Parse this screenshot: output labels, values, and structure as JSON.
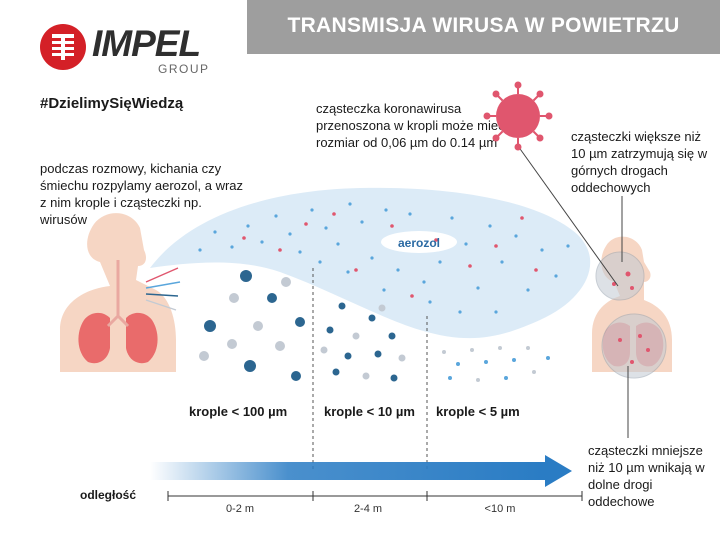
{
  "logo": {
    "word": "IMPEL",
    "sub": "GROUP"
  },
  "header": {
    "title": "TRANSMISJA WIRUSA W POWIETRZU"
  },
  "hashtag": "#DzielimySięWiedzą",
  "texts": {
    "left": "podczas rozmowy, kichania czy śmiechu rozpylamy aerozol, a wraz z nim krople i cząsteczki np. wirusów",
    "middle": "cząsteczka koronawirusa przenoszona w kropli może mieć rozmiar od 0,06 µm do 0.14 µm",
    "right_top": "cząsteczki większe niż 10 µm zatrzymują się w górnych drogach oddechowych",
    "right_bottom": "cząsteczki mniejsze niż 10 µm wnikają w dolne drogi oddechowe"
  },
  "aerosol_label": "aerozol",
  "categories": [
    "krople < 100 µm",
    "krople < 10 µm",
    "krople < 5 µm"
  ],
  "distance": {
    "label": "odległość",
    "ranges": [
      "0-2 m",
      "2-4 m",
      "<10 m"
    ]
  },
  "colors": {
    "banner": "#9e9e9e",
    "brand_red": "#d42027",
    "arrow_blue": "#2a7cc4",
    "cloud": "#dcebf7",
    "droplet_dark": "#2c6690",
    "droplet_grey": "#c3cad3",
    "virus": "#e0566e",
    "skin": "#f6d6c4"
  }
}
